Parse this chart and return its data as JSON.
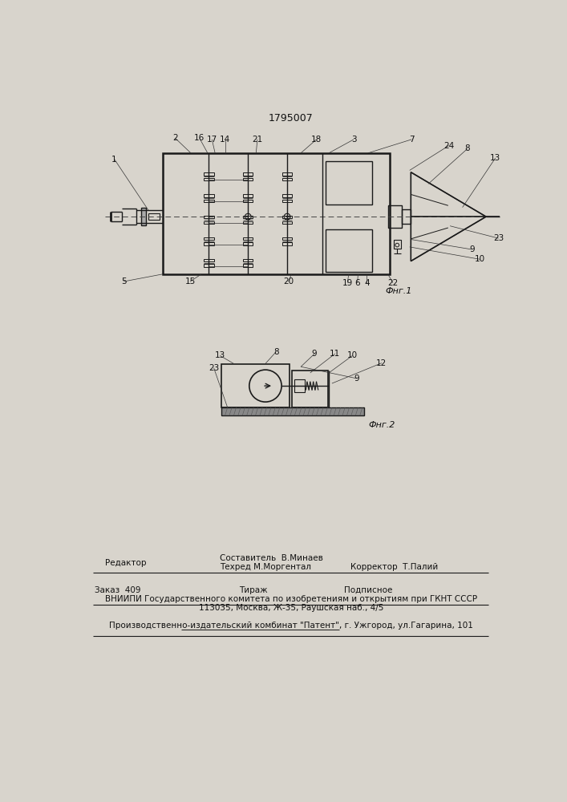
{
  "patent_number": "1795007",
  "bg_color": "#d8d4cc",
  "line_color": "#1a1a1a",
  "text_color": "#111111",
  "fig1_caption": "Фнг.1",
  "fig2_caption": "Фнг.2",
  "footer_editor": "Редактор",
  "footer_compiler": "Составитель  В.Минаев",
  "footer_techred": "Техред М.Моргентал",
  "footer_corrector": "Корректор  Т.Палий",
  "footer_order": "Заказ  409",
  "footer_tirazh": "Тираж",
  "footer_podpisnoe": "Подписное",
  "footer_vniip": "ВНИИПИ Государственного комитета по изобретениям и открытиям при ГКНТ СССР",
  "footer_address": "113035, Москва, Ж-35, Раушская наб., 4/5",
  "footer_plant": "Производственно-издательский комбинат \"Патент\", г. Ужгород, ул.Гагарина, 101"
}
